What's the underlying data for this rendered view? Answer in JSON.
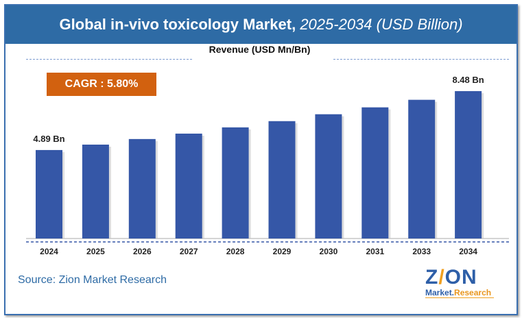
{
  "header": {
    "title": "Global in-vivo toxicology Market,",
    "title_italic": "2025-2034 (USD Billion)"
  },
  "cagr": "CAGR : 5.80%",
  "source": "Source: Zion Market Research",
  "logo": {
    "text1": "ZION",
    "text2": "Market.Research"
  },
  "chart_data": {
    "type": "bar",
    "title": "Global in-vivo toxicology Market, 2025-2034 (USD Billion)",
    "subtitle": "Revenue (USD Mn/Bn)",
    "categories": [
      "2024",
      "2025",
      "2026",
      "2027",
      "2028",
      "2029",
      "2030",
      "2031",
      "2033",
      "2034"
    ],
    "values": [
      4.89,
      5.22,
      5.56,
      5.89,
      6.27,
      6.65,
      7.07,
      7.49,
      7.95,
      8.48
    ],
    "data_labels": {
      "0": "4.89 Bn",
      "9": "8.48 Bn"
    },
    "ylim": [
      -0.5,
      9
    ],
    "grid": false,
    "colors": {
      "bar": "#3557a7",
      "header": "#2e6ba5",
      "cagr": "#d2610f"
    }
  }
}
